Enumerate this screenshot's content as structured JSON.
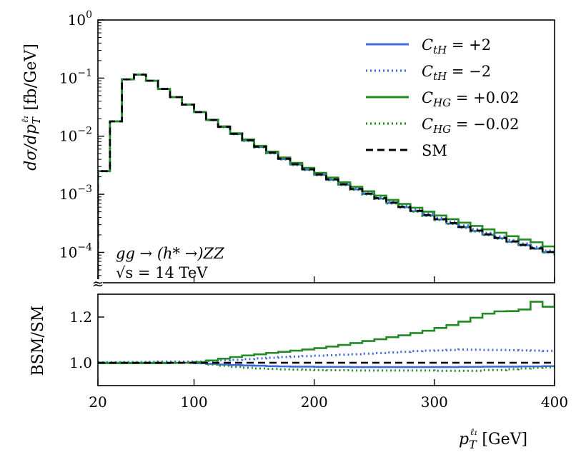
{
  "chart_data": {
    "type": "line",
    "xlim": [
      20,
      400
    ],
    "x_ticks": [
      {
        "value": 20,
        "label": "20"
      },
      {
        "value": 100,
        "label": "100"
      },
      {
        "value": 200,
        "label": "200"
      },
      {
        "value": 300,
        "label": "300"
      },
      {
        "value": 400,
        "label": "400"
      }
    ],
    "xlabel": {
      "sym": "p",
      "sup": "ℓ₁",
      "sub": "T",
      "unit": "[GeV]"
    },
    "main_panel": {
      "scale": "log",
      "ylim": [
        3e-05,
        1
      ],
      "y_ticks": [
        {
          "value": 1,
          "base": "10",
          "exp": "0"
        },
        {
          "value": 0.1,
          "base": "10",
          "exp": "−1"
        },
        {
          "value": 0.01,
          "base": "10",
          "exp": "−2"
        },
        {
          "value": 0.001,
          "base": "10",
          "exp": "−3"
        },
        {
          "value": 0.0001,
          "base": "10",
          "exp": "−4"
        }
      ],
      "ylabel": {
        "pre": "dσ/dp",
        "sup": "ℓ₁",
        "sub": "T",
        "post": " [fb/GeV]"
      },
      "annotation_line1": "gg → (h* →)ZZ",
      "annotation_line2": "√s = 14 TeV",
      "axis_break_mark": "≈"
    },
    "ratio_panel": {
      "scale": "linear",
      "ylim": [
        0.9,
        1.3
      ],
      "y_ticks": [
        {
          "value": 1.0,
          "label": "1.0"
        },
        {
          "value": 1.2,
          "label": "1.2"
        }
      ],
      "ylabel": "BSM/SM"
    },
    "bin_edges": [
      20,
      30,
      40,
      50,
      60,
      70,
      80,
      90,
      100,
      110,
      120,
      130,
      140,
      150,
      160,
      170,
      180,
      190,
      200,
      210,
      220,
      230,
      240,
      250,
      260,
      270,
      280,
      290,
      300,
      310,
      320,
      330,
      340,
      350,
      360,
      370,
      380,
      390,
      400
    ],
    "sm_values": [
      0.0025,
      0.018,
      0.095,
      0.115,
      0.09,
      0.065,
      0.047,
      0.035,
      0.026,
      0.019,
      0.0145,
      0.011,
      0.0085,
      0.0066,
      0.0052,
      0.0041,
      0.0033,
      0.0027,
      0.0022,
      0.00181,
      0.00149,
      0.00124,
      0.00103,
      0.00086,
      0.00072,
      0.00061,
      0.00052,
      0.00044,
      0.000375,
      0.00032,
      0.000275,
      0.000238,
      0.000205,
      0.000178,
      0.000155,
      0.000135,
      0.000118,
      0.000102,
      9e-05
    ],
    "series": [
      {
        "name": "C_tH = +2",
        "label": {
          "sym": "C",
          "sub": "tH",
          "rest": " = +2"
        },
        "color": "#4169e1",
        "dash": "solid",
        "ratio": [
          1.0,
          1.0,
          1.0,
          1.0,
          1.0,
          1.0,
          1.0,
          1.0,
          0.998,
          0.995,
          0.992,
          0.99,
          0.988,
          0.987,
          0.985,
          0.984,
          0.983,
          0.983,
          0.982,
          0.982,
          0.982,
          0.981,
          0.981,
          0.981,
          0.981,
          0.981,
          0.981,
          0.981,
          0.981,
          0.981,
          0.982,
          0.982,
          0.983,
          0.983,
          0.983,
          0.984,
          0.984,
          0.985,
          0.985
        ]
      },
      {
        "name": "C_tH = −2",
        "label": {
          "sym": "C",
          "sub": "tH",
          "rest": " = −2"
        },
        "color": "#4169e1",
        "dash": "dotted",
        "ratio": [
          1.002,
          1.002,
          1.003,
          1.003,
          1.004,
          1.005,
          1.005,
          1.005,
          1.005,
          1.008,
          1.011,
          1.013,
          1.016,
          1.019,
          1.022,
          1.025,
          1.027,
          1.029,
          1.031,
          1.033,
          1.035,
          1.037,
          1.04,
          1.042,
          1.045,
          1.048,
          1.051,
          1.053,
          1.054,
          1.056,
          1.058,
          1.057,
          1.056,
          1.056,
          1.055,
          1.054,
          1.053,
          1.052,
          1.052
        ]
      },
      {
        "name": "C_HG = +0.02",
        "label": {
          "sym": "C",
          "sub": "HG",
          "rest": " = +0.02"
        },
        "color": "#228b22",
        "dash": "solid",
        "ratio": [
          0.998,
          0.998,
          0.998,
          0.998,
          0.998,
          0.998,
          0.999,
          1.0,
          1.003,
          1.01,
          1.018,
          1.025,
          1.032,
          1.037,
          1.043,
          1.048,
          1.053,
          1.058,
          1.064,
          1.071,
          1.078,
          1.086,
          1.095,
          1.103,
          1.112,
          1.12,
          1.13,
          1.14,
          1.152,
          1.165,
          1.18,
          1.197,
          1.215,
          1.225,
          1.226,
          1.233,
          1.267,
          1.245,
          1.3
        ]
      },
      {
        "name": "C_HG = −0.02",
        "label": {
          "sym": "C",
          "sub": "HG",
          "rest": " = −0.02"
        },
        "color": "#228b22",
        "dash": "dotted",
        "ratio": [
          1.0,
          1.0,
          1.0,
          1.0,
          1.0,
          1.0,
          1.0,
          1.0,
          0.998,
          0.992,
          0.987,
          0.982,
          0.978,
          0.975,
          0.973,
          0.971,
          0.97,
          0.969,
          0.968,
          0.967,
          0.967,
          0.966,
          0.966,
          0.966,
          0.966,
          0.966,
          0.966,
          0.966,
          0.965,
          0.965,
          0.965,
          0.965,
          0.968,
          0.968,
          0.972,
          0.975,
          0.978,
          0.98,
          0.982
        ]
      },
      {
        "name": "SM",
        "label": {
          "sym": "",
          "sub": "",
          "rest": "SM"
        },
        "color": "#000000",
        "dash": "dashed",
        "ratio": [
          1,
          1,
          1,
          1,
          1,
          1,
          1,
          1,
          1,
          1,
          1,
          1,
          1,
          1,
          1,
          1,
          1,
          1,
          1,
          1,
          1,
          1,
          1,
          1,
          1,
          1,
          1,
          1,
          1,
          1,
          1,
          1,
          1,
          1,
          1,
          1,
          1,
          1,
          1
        ]
      }
    ],
    "legend_position": "top-right"
  }
}
